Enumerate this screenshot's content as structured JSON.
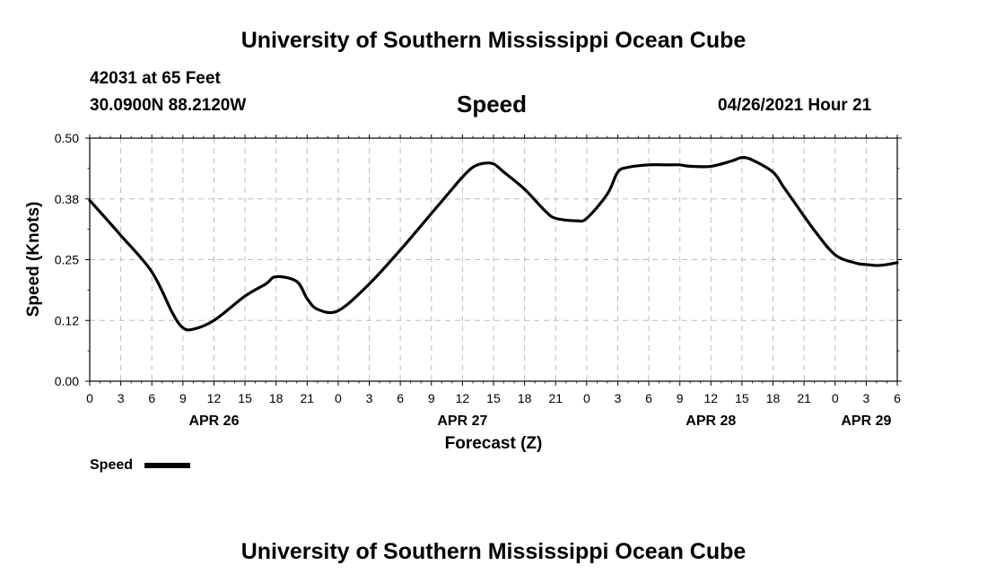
{
  "header": {
    "title": "University of Southern Mississippi Ocean Cube",
    "station": "42031 at 65 Feet",
    "coordinates": "30.0900N  88.2120W",
    "chart_name": "Speed",
    "timestamp": "04/26/2021 Hour 21"
  },
  "footer": {
    "title": "University of Southern Mississippi Ocean Cube"
  },
  "legend": {
    "label": "Speed"
  },
  "colors": {
    "line": "#000000",
    "grid": "#bdbdbd",
    "axis": "#000000"
  },
  "chart_data": {
    "type": "line",
    "title": "Speed",
    "xlabel": "Forecast (Z)",
    "ylabel": "Speed (Knots)",
    "xlim": [
      0,
      78
    ],
    "ylim": [
      0,
      0.5
    ],
    "y_ticks": [
      "0.00",
      "0.12",
      "0.25",
      "0.38",
      "0.50"
    ],
    "x_tick_labels": [
      "0",
      "3",
      "6",
      "9",
      "12",
      "15",
      "18",
      "21",
      "0",
      "3",
      "6",
      "9",
      "12",
      "15",
      "18",
      "21",
      "0",
      "3",
      "6",
      "9",
      "12",
      "15",
      "18",
      "21",
      "0",
      "3",
      "6"
    ],
    "day_labels": [
      {
        "label": "APR 26",
        "hour": 12
      },
      {
        "label": "APR 27",
        "hour": 36
      },
      {
        "label": "APR 28",
        "hour": 60
      },
      {
        "label": "APR 29",
        "hour": 75
      }
    ],
    "series": [
      {
        "name": "Speed",
        "x": [
          0,
          3,
          6,
          8,
          9,
          10,
          12,
          15,
          17,
          18,
          20,
          21,
          22,
          24,
          27,
          30,
          33,
          35,
          36,
          37,
          38,
          39,
          40,
          42,
          44,
          45,
          47,
          48,
          50,
          51,
          52,
          54,
          56,
          57,
          58,
          60,
          62,
          63,
          64,
          66,
          67,
          68,
          70,
          72,
          74,
          75,
          76,
          77,
          78
        ],
        "values": [
          0.372,
          0.3,
          0.225,
          0.14,
          0.11,
          0.107,
          0.125,
          0.175,
          0.2,
          0.215,
          0.205,
          0.17,
          0.148,
          0.145,
          0.2,
          0.27,
          0.345,
          0.395,
          0.42,
          0.44,
          0.448,
          0.447,
          0.43,
          0.395,
          0.35,
          0.335,
          0.33,
          0.335,
          0.385,
          0.43,
          0.44,
          0.445,
          0.445,
          0.445,
          0.442,
          0.442,
          0.453,
          0.46,
          0.455,
          0.43,
          0.4,
          0.37,
          0.31,
          0.26,
          0.243,
          0.24,
          0.238,
          0.24,
          0.244
        ]
      }
    ]
  }
}
